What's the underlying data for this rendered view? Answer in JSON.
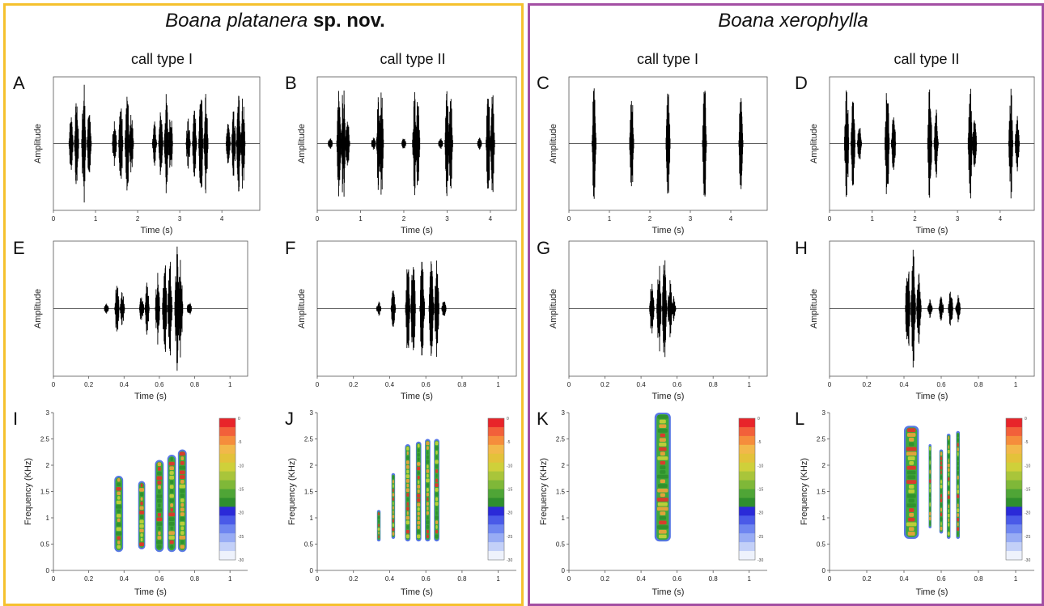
{
  "groups": [
    {
      "title_italic": "Boana platanera",
      "title_bold": " sp. nov.",
      "color": "#f5c12e",
      "col1": "call type I",
      "col2": "call type II"
    },
    {
      "title_italic": "Boana xerophylla",
      "title_bold": "",
      "color": "#a34fa3",
      "col1": "call type I",
      "col2": "call type II"
    }
  ],
  "panel_letters": [
    "A",
    "B",
    "C",
    "D",
    "E",
    "F",
    "G",
    "H",
    "I",
    "J",
    "K",
    "L"
  ],
  "chart_data": [
    {
      "panel": "A",
      "type": "line",
      "kind": "oscillogram",
      "ylabel": "Amplitude",
      "xlabel": "Time (s)",
      "xlim": [
        0,
        4.9
      ],
      "xticks": [
        0,
        1,
        2,
        3,
        4
      ],
      "pulses": [
        {
          "t": 0.42,
          "a": 0.45
        },
        {
          "t": 0.55,
          "a": 0.75
        },
        {
          "t": 0.72,
          "a": 1.0
        },
        {
          "t": 0.85,
          "a": 0.6
        },
        {
          "t": 1.45,
          "a": 0.45
        },
        {
          "t": 1.6,
          "a": 0.75
        },
        {
          "t": 1.75,
          "a": 0.85
        },
        {
          "t": 1.85,
          "a": 0.5
        },
        {
          "t": 2.4,
          "a": 0.35
        },
        {
          "t": 2.55,
          "a": 0.55
        },
        {
          "t": 2.68,
          "a": 0.8
        },
        {
          "t": 2.78,
          "a": 0.6
        },
        {
          "t": 3.2,
          "a": 0.4
        },
        {
          "t": 3.35,
          "a": 0.65
        },
        {
          "t": 3.5,
          "a": 1.0
        },
        {
          "t": 3.62,
          "a": 0.8
        },
        {
          "t": 4.15,
          "a": 0.35
        },
        {
          "t": 4.28,
          "a": 0.55
        },
        {
          "t": 4.4,
          "a": 0.85
        },
        {
          "t": 4.5,
          "a": 0.8
        }
      ]
    },
    {
      "panel": "B",
      "type": "line",
      "kind": "oscillogram",
      "ylabel": "Amplitude",
      "xlabel": "Time (s)",
      "xlim": [
        0,
        4.6
      ],
      "xticks": [
        0,
        1,
        2,
        3,
        4
      ],
      "pulses": [
        {
          "t": 0.3,
          "a": 0.1
        },
        {
          "t": 0.5,
          "a": 0.85
        },
        {
          "t": 0.6,
          "a": 1.0
        },
        {
          "t": 0.7,
          "a": 0.4
        },
        {
          "t": 1.3,
          "a": 0.1
        },
        {
          "t": 1.42,
          "a": 0.85
        },
        {
          "t": 1.48,
          "a": 0.9
        },
        {
          "t": 2.0,
          "a": 0.1
        },
        {
          "t": 2.25,
          "a": 0.85
        },
        {
          "t": 2.32,
          "a": 0.9
        },
        {
          "t": 2.85,
          "a": 0.1
        },
        {
          "t": 3.0,
          "a": 0.85
        },
        {
          "t": 3.08,
          "a": 0.8
        },
        {
          "t": 3.75,
          "a": 0.1
        },
        {
          "t": 3.95,
          "a": 0.85
        },
        {
          "t": 4.05,
          "a": 0.9
        }
      ]
    },
    {
      "panel": "C",
      "type": "line",
      "kind": "oscillogram",
      "ylabel": "Amplitude",
      "xlabel": "Time (s)",
      "xlim": [
        0,
        4.9
      ],
      "xticks": [
        0,
        1,
        2,
        3,
        4
      ],
      "pulses": [
        {
          "t": 0.62,
          "a": 0.95
        },
        {
          "t": 1.55,
          "a": 0.95
        },
        {
          "t": 2.45,
          "a": 0.95
        },
        {
          "t": 3.35,
          "a": 0.95
        },
        {
          "t": 4.25,
          "a": 0.95
        }
      ]
    },
    {
      "panel": "D",
      "type": "line",
      "kind": "oscillogram",
      "ylabel": "Amplitude",
      "xlabel": "Time (s)",
      "xlim": [
        0,
        4.8
      ],
      "xticks": [
        0,
        1,
        2,
        3,
        4
      ],
      "pulses": [
        {
          "t": 0.4,
          "a": 1.0
        },
        {
          "t": 0.55,
          "a": 0.7
        },
        {
          "t": 0.7,
          "a": 0.3
        },
        {
          "t": 1.35,
          "a": 0.95
        },
        {
          "t": 1.5,
          "a": 0.6
        },
        {
          "t": 2.35,
          "a": 1.0
        },
        {
          "t": 2.5,
          "a": 0.55
        },
        {
          "t": 3.3,
          "a": 0.95
        },
        {
          "t": 3.4,
          "a": 0.4
        },
        {
          "t": 4.25,
          "a": 1.0
        },
        {
          "t": 4.4,
          "a": 0.55
        }
      ]
    },
    {
      "panel": "E",
      "type": "line",
      "kind": "oscillogram",
      "ylabel": "Amplitude",
      "xlabel": "Time (s)",
      "xlim": [
        0,
        1.1
      ],
      "xticks": [
        0,
        0.2,
        0.4,
        0.6,
        0.8,
        1.0
      ],
      "pulses": [
        {
          "t": 0.3,
          "a": 0.08
        },
        {
          "t": 0.36,
          "a": 0.45
        },
        {
          "t": 0.39,
          "a": 0.3
        },
        {
          "t": 0.5,
          "a": 0.25
        },
        {
          "t": 0.53,
          "a": 0.45
        },
        {
          "t": 0.59,
          "a": 0.6
        },
        {
          "t": 0.63,
          "a": 0.85
        },
        {
          "t": 0.66,
          "a": 0.85
        },
        {
          "t": 0.7,
          "a": 1.0
        },
        {
          "t": 0.72,
          "a": 0.8
        },
        {
          "t": 0.77,
          "a": 0.15
        }
      ]
    },
    {
      "panel": "F",
      "type": "line",
      "kind": "oscillogram",
      "ylabel": "Amplitude",
      "xlabel": "Time (s)",
      "xlim": [
        0,
        1.1
      ],
      "xticks": [
        0,
        0.2,
        0.4,
        0.6,
        0.8,
        1.0
      ],
      "pulses": [
        {
          "t": 0.34,
          "a": 0.12
        },
        {
          "t": 0.42,
          "a": 0.3
        },
        {
          "t": 0.5,
          "a": 0.75
        },
        {
          "t": 0.53,
          "a": 0.85
        },
        {
          "t": 0.58,
          "a": 1.0
        },
        {
          "t": 0.63,
          "a": 0.9
        },
        {
          "t": 0.66,
          "a": 0.85
        },
        {
          "t": 0.7,
          "a": 0.15
        }
      ]
    },
    {
      "panel": "G",
      "type": "line",
      "kind": "oscillogram",
      "ylabel": "Amplitude",
      "xlabel": "Time (s)",
      "xlim": [
        0,
        1.1
      ],
      "xticks": [
        0,
        0.2,
        0.4,
        0.6,
        0.8,
        1.0
      ],
      "pulses": [
        {
          "t": 0.46,
          "a": 0.45
        },
        {
          "t": 0.5,
          "a": 0.75
        },
        {
          "t": 0.53,
          "a": 0.85
        },
        {
          "t": 0.56,
          "a": 0.5
        },
        {
          "t": 0.58,
          "a": 0.2
        }
      ]
    },
    {
      "panel": "H",
      "type": "line",
      "kind": "oscillogram",
      "ylabel": "Amplitude",
      "xlabel": "Time (s)",
      "xlim": [
        0,
        1.1
      ],
      "xticks": [
        0,
        0.2,
        0.4,
        0.6,
        0.8,
        1.0
      ],
      "pulses": [
        {
          "t": 0.42,
          "a": 0.85
        },
        {
          "t": 0.45,
          "a": 1.0
        },
        {
          "t": 0.48,
          "a": 0.6
        },
        {
          "t": 0.54,
          "a": 0.15
        },
        {
          "t": 0.6,
          "a": 0.2
        },
        {
          "t": 0.65,
          "a": 0.3
        },
        {
          "t": 0.69,
          "a": 0.25
        }
      ]
    },
    {
      "panel": "I",
      "type": "heatmap",
      "kind": "spectrogram",
      "ylabel": "Frequency (KHz)",
      "xlabel": "Time (s)",
      "xlim": [
        0,
        1.1
      ],
      "ylim": [
        0,
        3.0
      ],
      "xticks": [
        0,
        0.2,
        0.4,
        0.6,
        0.8,
        1.0
      ],
      "yticks": [
        0,
        0.5,
        1.0,
        1.5,
        2.0,
        2.5,
        3.0
      ],
      "colorbar_ticks": [
        0,
        -5,
        -10,
        -15,
        -20,
        -25,
        -30
      ],
      "blobs": [
        {
          "t": 0.37,
          "w": 0.05,
          "f0": 0.35,
          "f1": 1.8
        },
        {
          "t": 0.5,
          "w": 0.04,
          "f0": 0.4,
          "f1": 1.7
        },
        {
          "t": 0.6,
          "w": 0.05,
          "f0": 0.35,
          "f1": 2.1
        },
        {
          "t": 0.67,
          "w": 0.05,
          "f0": 0.35,
          "f1": 2.2
        },
        {
          "t": 0.73,
          "w": 0.05,
          "f0": 0.35,
          "f1": 2.3
        }
      ]
    },
    {
      "panel": "J",
      "type": "heatmap",
      "kind": "spectrogram",
      "ylabel": "Frequency (KHz)",
      "xlabel": "Time (s)",
      "xlim": [
        0,
        1.1
      ],
      "ylim": [
        0,
        3.0
      ],
      "xticks": [
        0,
        0.2,
        0.4,
        0.6,
        0.8,
        1.0
      ],
      "yticks": [
        0,
        0.5,
        1.0,
        1.5,
        2.0,
        2.5,
        3.0
      ],
      "colorbar_ticks": [
        0,
        -5,
        -10,
        -15,
        -20,
        -25,
        -30
      ],
      "blobs": [
        {
          "t": 0.34,
          "w": 0.02,
          "f0": 0.55,
          "f1": 1.15
        },
        {
          "t": 0.42,
          "w": 0.02,
          "f0": 0.6,
          "f1": 1.85
        },
        {
          "t": 0.5,
          "w": 0.03,
          "f0": 0.55,
          "f1": 2.4
        },
        {
          "t": 0.56,
          "w": 0.03,
          "f0": 0.55,
          "f1": 2.45
        },
        {
          "t": 0.61,
          "w": 0.03,
          "f0": 0.55,
          "f1": 2.5
        },
        {
          "t": 0.66,
          "w": 0.03,
          "f0": 0.55,
          "f1": 2.5
        }
      ]
    },
    {
      "panel": "K",
      "type": "heatmap",
      "kind": "spectrogram",
      "ylabel": "Frequency (KHz)",
      "xlabel": "Time (s)",
      "xlim": [
        0,
        1.1
      ],
      "ylim": [
        0,
        3.0
      ],
      "xticks": [
        0,
        0.2,
        0.4,
        0.6,
        0.8,
        1.0
      ],
      "yticks": [
        0,
        0.5,
        1.0,
        1.5,
        2.0,
        2.5,
        3.0
      ],
      "colorbar_ticks": [
        0,
        -5,
        -10,
        -15,
        -20,
        -25,
        -30
      ],
      "blobs": [
        {
          "t": 0.52,
          "w": 0.09,
          "f0": 0.55,
          "f1": 3.0
        }
      ]
    },
    {
      "panel": "L",
      "type": "heatmap",
      "kind": "spectrogram",
      "ylabel": "Frequency (KHz)",
      "xlabel": "Time (s)",
      "xlim": [
        0,
        1.1
      ],
      "ylim": [
        0,
        3.0
      ],
      "xticks": [
        0,
        0.2,
        0.4,
        0.6,
        0.8,
        1.0
      ],
      "yticks": [
        0,
        0.5,
        1.0,
        1.5,
        2.0,
        2.5,
        3.0
      ],
      "colorbar_ticks": [
        0,
        -5,
        -10,
        -15,
        -20,
        -25,
        -30
      ],
      "blobs": [
        {
          "t": 0.44,
          "w": 0.08,
          "f0": 0.6,
          "f1": 2.75
        },
        {
          "t": 0.54,
          "w": 0.015,
          "f0": 0.8,
          "f1": 2.4
        },
        {
          "t": 0.6,
          "w": 0.02,
          "f0": 0.7,
          "f1": 2.3
        },
        {
          "t": 0.64,
          "w": 0.02,
          "f0": 0.6,
          "f1": 2.6
        },
        {
          "t": 0.69,
          "w": 0.02,
          "f0": 0.6,
          "f1": 2.65
        }
      ]
    }
  ]
}
